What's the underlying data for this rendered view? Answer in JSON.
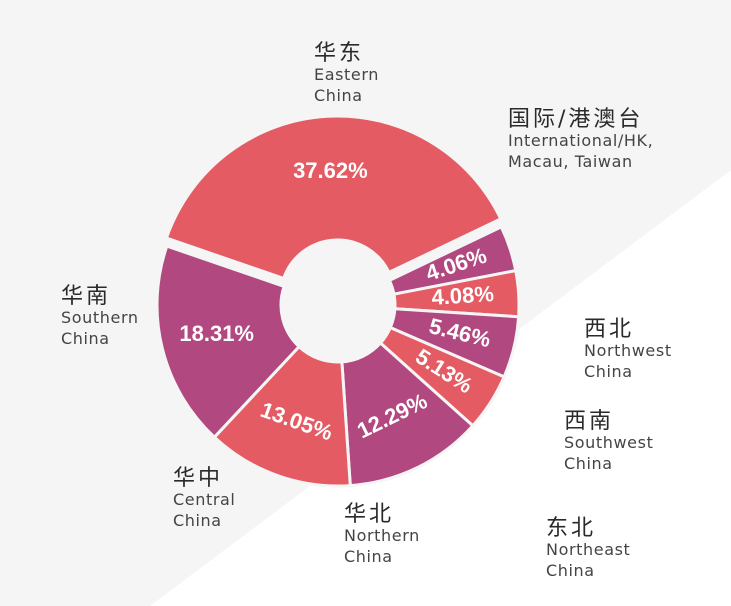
{
  "chart_data": {
    "type": "pie",
    "variant": "donut",
    "title": "",
    "slices": [
      {
        "label_zh": "华东",
        "label_en": [
          "Eastern",
          "China"
        ],
        "value": 37.62,
        "value_label": "37.62%",
        "color": "#e45b63"
      },
      {
        "label_zh": "国际/港澳台",
        "label_en": [
          "International/HK,",
          "Macau, Taiwan"
        ],
        "value": 4.06,
        "value_label": "4.06%",
        "color": "#b1487f"
      },
      {
        "label_zh": "西北",
        "label_en": [
          "Northwest",
          "China"
        ],
        "value": 4.08,
        "value_label": "4.08%",
        "color": "#e45b63"
      },
      {
        "label_zh": "西南",
        "label_en": [
          "Southwest",
          "China"
        ],
        "value": 5.46,
        "value_label": "5.46%",
        "color": "#b1487f"
      },
      {
        "label_zh": "东北",
        "label_en": [
          "Northeast",
          "China"
        ],
        "value": 5.13,
        "value_label": "5.13%",
        "color": "#e45b63"
      },
      {
        "label_zh": "华北",
        "label_en": [
          "Northern",
          "China"
        ],
        "value": 12.29,
        "value_label": "12.29%",
        "color": "#b1487f"
      },
      {
        "label_zh": "华中",
        "label_en": [
          "Central",
          "China"
        ],
        "value": 13.05,
        "value_label": "13.05%",
        "color": "#e45b63"
      },
      {
        "label_zh": "华南",
        "label_en": [
          "Southern",
          "China"
        ],
        "value": 18.31,
        "value_label": "18.31%",
        "color": "#b1487f"
      }
    ]
  }
}
